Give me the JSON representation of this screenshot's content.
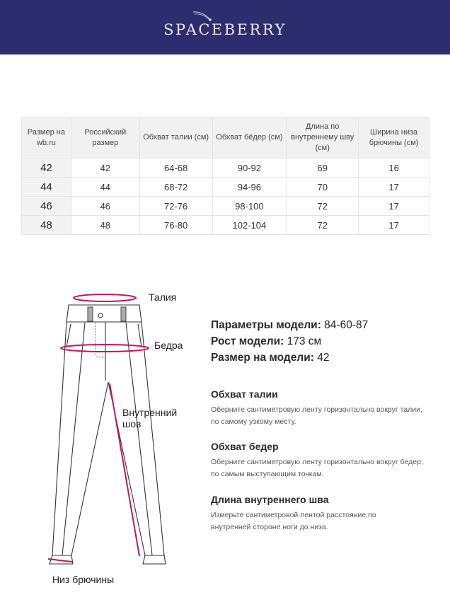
{
  "brand": {
    "logo": "SPACEBERRY",
    "background": "#2c2d6e"
  },
  "table": {
    "headers": [
      "Размер на wb.ru",
      "Российский размер",
      "Обхват талии (см)",
      "Обхват бёдер (см)",
      "Длина по внутреннему шву (см)",
      "Ширина низа брючины (см)"
    ],
    "rows": [
      [
        "42",
        "42",
        "64-68",
        "90-92",
        "69",
        "16"
      ],
      [
        "44",
        "44",
        "68-72",
        "94-96",
        "70",
        "17"
      ],
      [
        "46",
        "46",
        "72-76",
        "98-100",
        "72",
        "17"
      ],
      [
        "48",
        "48",
        "76-80",
        "102-104",
        "72",
        "17"
      ]
    ]
  },
  "diagram": {
    "labels": {
      "waist": "Талия",
      "hips": "Бедра",
      "inseam": "Внутренний шов",
      "hem": "Низ брючины"
    },
    "accent": "#c2185b"
  },
  "model": {
    "params_label": "Параметры модели:",
    "params_value": "84-60-87",
    "height_label": "Рост модели:",
    "height_value": "173 см",
    "size_label": "Размер на модели:",
    "size_value": "42"
  },
  "instructions": [
    {
      "title": "Обхват талии",
      "text": "Оберните сантиметровую ленту горизонтально вокруг талии, по самому узкому месту."
    },
    {
      "title": "Обхват бедер",
      "text": "Оберните сантиметровую ленту горизонтально вокруг бедер, по самым выступающим точкам."
    },
    {
      "title": "Длина внутреннего шва",
      "text": "Измерьте сантиметровой лентой расстояние по внутренней стороне ноги до низа."
    }
  ]
}
